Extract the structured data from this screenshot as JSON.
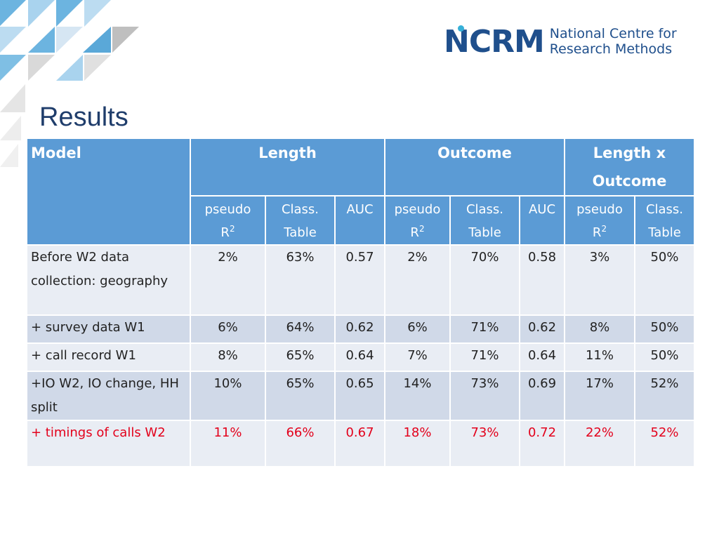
{
  "logo": {
    "mark": "NCRM",
    "line1": "National Centre for",
    "line2": "Research Methods"
  },
  "title": "Results",
  "table": {
    "model_header": "Model",
    "groups": [
      "Length",
      "Outcome",
      "Length x Outcome"
    ],
    "subheaders": [
      {
        "line1": "pseudo",
        "line2": "R",
        "sup": "2"
      },
      {
        "line1": "Class.",
        "line2": "Table"
      },
      {
        "line1": "AUC"
      },
      {
        "line1": "pseudo",
        "line2": "R",
        "sup": "2"
      },
      {
        "line1": "Class.",
        "line2": "Table"
      },
      {
        "line1": "AUC"
      },
      {
        "line1": "pseudo",
        "line2": "R",
        "sup": "2"
      },
      {
        "line1": "Class.",
        "line2": "Table"
      }
    ],
    "rows": [
      {
        "label": "Before  W2 data collection: geography",
        "values": [
          "2%",
          "63%",
          "0.57",
          "2%",
          "70%",
          "0.58",
          "3%",
          "50%"
        ]
      },
      {
        "label": "+ survey data W1",
        "values": [
          "6%",
          "64%",
          "0.62",
          "6%",
          "71%",
          "0.62",
          "8%",
          "50%"
        ]
      },
      {
        "label": "+ call record  W1",
        "values": [
          "8%",
          "65%",
          "0.64",
          "7%",
          "71%",
          "0.64",
          "11%",
          "50%"
        ]
      },
      {
        "label": "+IO W2, IO change, HH split",
        "values": [
          "10%",
          "65%",
          "0.65",
          "14%",
          "73%",
          "0.69",
          "17%",
          "52%"
        ]
      },
      {
        "label": "+ timings of calls W2",
        "values": [
          "11%",
          "66%",
          "0.67",
          "18%",
          "73%",
          "0.72",
          "22%",
          "52%"
        ]
      }
    ]
  },
  "colors": {
    "header": "#5b9bd5",
    "row_light": "#e9edf4",
    "row_dark": "#d0d9e8",
    "highlight_text": "#e3001b",
    "title": "#1f3d6b"
  }
}
